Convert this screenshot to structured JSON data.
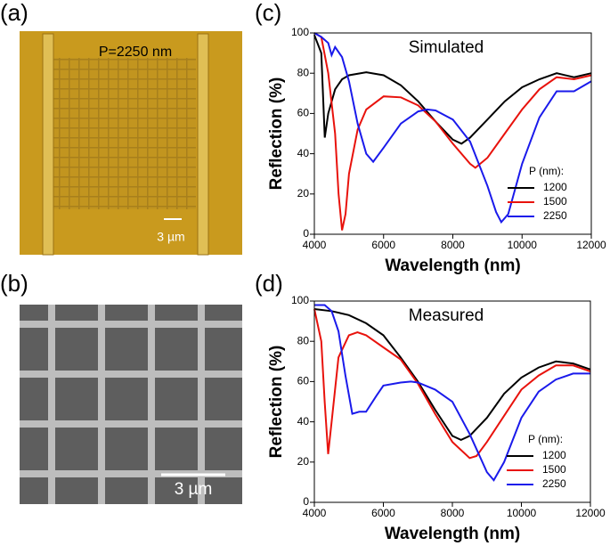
{
  "images": [
    {
      "label": "(a)",
      "annotation": "P=2250 nm",
      "scale_bar": "3 µm"
    },
    {
      "label": "(b)",
      "scale_bar": "3 µm"
    }
  ],
  "chart_data": [
    {
      "type": "line",
      "panel_label": "(c)",
      "annotation": "Simulated",
      "x_label": "Wavelength (nm)",
      "y_label": "Reflection (%)",
      "xlim": [
        4000,
        12000
      ],
      "xticks": [
        4000,
        6000,
        8000,
        10000,
        12000
      ],
      "ylim": [
        0,
        100
      ],
      "yticks": [
        0,
        20,
        40,
        60,
        80,
        100
      ],
      "legend_title": "P (nm):",
      "legend": "lower right",
      "series": [
        {
          "name": "1200",
          "color": "#000000",
          "x": [
            4000,
            4200,
            4300,
            4400,
            4600,
            4800,
            5000,
            5500,
            6000,
            6500,
            7000,
            7500,
            8000,
            8250,
            8500,
            9000,
            9500,
            10000,
            10500,
            11000,
            11500,
            12000
          ],
          "values": [
            99,
            90,
            48,
            60,
            72,
            77,
            79,
            80.5,
            79,
            74,
            66,
            56,
            47,
            45,
            48,
            57,
            66,
            73,
            77,
            80,
            78,
            80
          ]
        },
        {
          "name": "1500",
          "color": "#e8120c",
          "x": [
            4000,
            4200,
            4400,
            4600,
            4700,
            4800,
            4900,
            5000,
            5250,
            5500,
            6000,
            6500,
            7000,
            7500,
            8000,
            8500,
            8650,
            9000,
            9500,
            10000,
            10500,
            11000,
            11500,
            12000
          ],
          "values": [
            100,
            98,
            80,
            50,
            20,
            2,
            10,
            30,
            52,
            62,
            68.5,
            68,
            64,
            56,
            45,
            35,
            33,
            38,
            50,
            62,
            72,
            78,
            77,
            79
          ]
        },
        {
          "name": "2250",
          "color": "#1a1aeb",
          "x": [
            4000,
            4200,
            4400,
            4500,
            4600,
            4800,
            5000,
            5250,
            5500,
            5700,
            6000,
            6500,
            7000,
            7250,
            7500,
            8000,
            8500,
            9000,
            9250,
            9400,
            9600,
            10000,
            10500,
            11000,
            11500,
            12000
          ],
          "values": [
            100,
            98,
            95,
            89,
            93,
            88,
            76,
            55,
            40,
            36,
            43,
            55,
            61,
            62,
            61.5,
            57,
            46,
            24,
            11,
            6,
            10,
            35,
            58,
            71,
            71,
            76
          ]
        }
      ]
    },
    {
      "type": "line",
      "panel_label": "(d)",
      "annotation": "Measured",
      "x_label": "Wavelength (nm)",
      "y_label": "Reflection (%)",
      "xlim": [
        4000,
        12000
      ],
      "xticks": [
        4000,
        6000,
        8000,
        10000,
        12000
      ],
      "ylim": [
        0,
        100
      ],
      "yticks": [
        0,
        20,
        40,
        60,
        80,
        100
      ],
      "legend_title": "P (nm):",
      "legend": "lower right",
      "series": [
        {
          "name": "1200",
          "color": "#000000",
          "x": [
            4000,
            4500,
            5000,
            5500,
            6000,
            6500,
            7000,
            7500,
            8000,
            8250,
            8500,
            9000,
            9500,
            10000,
            10500,
            11000,
            11500,
            12000
          ],
          "values": [
            96,
            95,
            93,
            89,
            83,
            72,
            60,
            46,
            33,
            31,
            33,
            42,
            54,
            62,
            67,
            70,
            69,
            66
          ]
        },
        {
          "name": "1500",
          "color": "#e8120c",
          "x": [
            4000,
            4200,
            4300,
            4400,
            4500,
            4700,
            5000,
            5250,
            5500,
            6000,
            6500,
            7000,
            7500,
            8000,
            8500,
            8700,
            9000,
            9500,
            10000,
            10500,
            11000,
            11500,
            12000
          ],
          "values": [
            96,
            80,
            50,
            24,
            40,
            72,
            83,
            84.5,
            83,
            77,
            71,
            59,
            44,
            30,
            22,
            23,
            30,
            43,
            56,
            63,
            68,
            68,
            65
          ]
        },
        {
          "name": "2250",
          "color": "#1a1aeb",
          "x": [
            4000,
            4300,
            4500,
            4700,
            4900,
            5100,
            5300,
            5500,
            5800,
            6000,
            6500,
            6800,
            7000,
            7500,
            8000,
            8500,
            9000,
            9200,
            9500,
            10000,
            10500,
            11000,
            11500,
            12000
          ],
          "values": [
            98,
            98,
            95,
            85,
            63,
            44,
            45,
            45,
            53,
            58,
            59.5,
            60,
            59.5,
            56,
            50,
            34,
            15,
            11,
            20,
            42,
            55,
            61,
            64,
            64
          ]
        }
      ]
    }
  ]
}
